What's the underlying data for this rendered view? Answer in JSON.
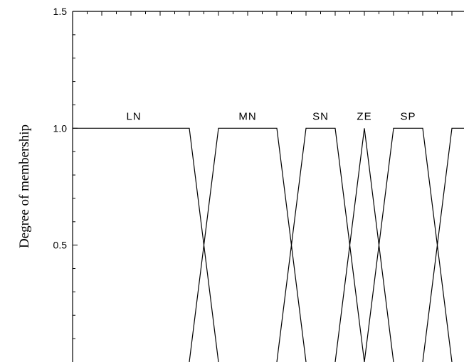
{
  "chart_data": {
    "type": "line",
    "title": "",
    "xlabel": "",
    "ylabel": "Degree of membership",
    "ylim": [
      0,
      1.5
    ],
    "yticks": [
      0.5,
      1.0,
      1.5
    ],
    "ytick_labels": [
      "0.5",
      "1.0",
      "1.5"
    ],
    "xlim": [
      0,
      16
    ],
    "grid": false,
    "series": [
      {
        "name": "LN",
        "x": [
          0,
          4,
          5
        ],
        "y": [
          1,
          1,
          0
        ]
      },
      {
        "name": "MN",
        "x": [
          4,
          5,
          7,
          8
        ],
        "y": [
          0,
          1,
          1,
          0
        ]
      },
      {
        "name": "SN",
        "x": [
          7,
          8,
          9,
          10
        ],
        "y": [
          0,
          1,
          1,
          0
        ]
      },
      {
        "name": "ZE",
        "x": [
          9,
          10,
          11
        ],
        "y": [
          0,
          1,
          0
        ]
      },
      {
        "name": "SP",
        "x": [
          10,
          11,
          12,
          13
        ],
        "y": [
          0,
          1,
          1,
          0
        ]
      },
      {
        "name": "",
        "x": [
          12,
          13,
          14
        ],
        "y": [
          0,
          1,
          1
        ]
      }
    ]
  }
}
